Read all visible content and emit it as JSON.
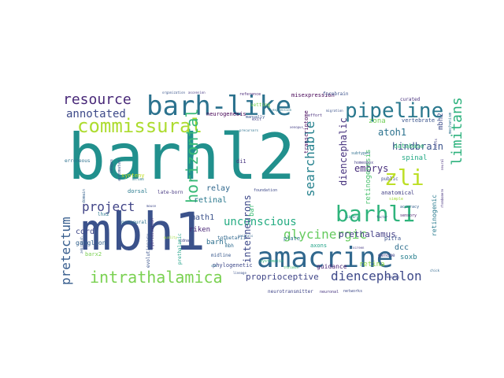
{
  "words": [
    {
      "text": "barhl2",
      "color": "#21908d"
    },
    {
      "text": "mbh1",
      "color": "#3b528b"
    },
    {
      "text": "amacrine",
      "color": "#31688e"
    },
    {
      "text": "barh-like",
      "color": "#2c728e"
    },
    {
      "text": "barhl1",
      "color": "#2fb47c"
    },
    {
      "text": "pipeline",
      "color": "#2a788e"
    },
    {
      "text": "zli",
      "color": "#bddf26"
    },
    {
      "text": "commissural",
      "color": "#addc30"
    },
    {
      "text": "intrathalamica",
      "color": "#7ad151"
    },
    {
      "text": "diencephalon",
      "color": "#3e4989"
    },
    {
      "text": "glycinergic",
      "color": "#65cb5e"
    },
    {
      "text": "resource",
      "color": "#482878"
    },
    {
      "text": "horizontal",
      "color": "#38b977"
    },
    {
      "text": "limitans",
      "color": "#2db27d"
    },
    {
      "text": "pretectum",
      "color": "#365c8d"
    },
    {
      "text": "annotated",
      "color": "#3e4a89"
    },
    {
      "text": "project",
      "color": "#414487"
    },
    {
      "text": "searchable",
      "color": "#26828e"
    },
    {
      "text": "unconscious",
      "color": "#25ac82"
    },
    {
      "text": "diencephalic",
      "color": "#46327e"
    },
    {
      "text": "embrys",
      "color": "#472d7b"
    },
    {
      "text": "atoh1",
      "color": "#2c728e"
    },
    {
      "text": "hindbrain",
      "color": "#3b528b"
    },
    {
      "text": "interneurons",
      "color": "#3e4989"
    },
    {
      "text": "proprioceptive",
      "color": "#404688"
    },
    {
      "text": "prethalamus",
      "color": "#433e85"
    },
    {
      "text": "relay",
      "color": "#31688e"
    },
    {
      "text": "retinal",
      "color": "#2a788e"
    },
    {
      "text": "math1",
      "color": "#3b528b"
    },
    {
      "text": "riken",
      "color": "#482475"
    },
    {
      "text": "cord",
      "color": "#3f4889"
    },
    {
      "text": "dcc",
      "color": "#2e6e8e"
    },
    {
      "text": "soxb",
      "color": "#277f8e"
    },
    {
      "text": "spinal",
      "color": "#22a884"
    },
    {
      "text": "retinogenesis",
      "color": "#4ac16d"
    },
    {
      "text": "mbh2",
      "color": "#3e4c8a"
    },
    {
      "text": "zona",
      "color": "#70cf57"
    },
    {
      "text": "retina",
      "color": "#8bd646"
    },
    {
      "text": "barhl",
      "color": "#2d708e"
    },
    {
      "text": "guidance",
      "color": "#482173"
    },
    {
      "text": "database",
      "color": "#35b779"
    },
    {
      "text": "vertebrate",
      "color": "#3a548c"
    },
    {
      "text": "synteny",
      "color": "#c2df23"
    },
    {
      "text": "neurogenesis",
      "color": "#440154"
    },
    {
      "text": "retinogenic",
      "color": "#297b8e"
    },
    {
      "text": "transcriptome",
      "color": "#46075a"
    },
    {
      "text": "bar",
      "color": "#3dbc74"
    },
    {
      "text": "di1",
      "color": "#46337f"
    },
    {
      "text": "ganglion",
      "color": "#34618d"
    },
    {
      "text": "plate",
      "color": "#2c728e"
    },
    {
      "text": "axons",
      "color": "#1fa287"
    },
    {
      "text": "anatomical",
      "color": "#424086"
    },
    {
      "text": "dorsal",
      "color": "#297a8e"
    },
    {
      "text": "late-born",
      "color": "#453781"
    },
    {
      "text": "phylogenetic",
      "color": "#3e4989"
    },
    {
      "text": "midline",
      "color": "#38588c"
    },
    {
      "text": "misexpression",
      "color": "#440154"
    },
    {
      "text": "forebrain",
      "color": "#3b518b"
    },
    {
      "text": "curated",
      "color": "#472f7d"
    },
    {
      "text": "mbh",
      "color": "#2f6c8e"
    },
    {
      "text": "reference",
      "color": "#482677"
    },
    {
      "text": "evolutionary",
      "color": "#3a538b"
    },
    {
      "text": "pitfa",
      "color": "#3b528b"
    },
    {
      "text": "lhx2",
      "color": "#2a788e"
    },
    {
      "text": "barx2",
      "color": "#7ad151"
    },
    {
      "text": "neurotransmitter",
      "color": "#404688"
    },
    {
      "text": "neuronal",
      "color": "#46337f"
    },
    {
      "text": "networks",
      "color": "#3e4989"
    },
    {
      "text": "genome",
      "color": "#414487"
    },
    {
      "text": "tgfbetarii",
      "color": "#31688e"
    },
    {
      "text": "proneural",
      "color": "#2c728e"
    },
    {
      "text": "public",
      "color": "#3e4989"
    },
    {
      "text": "simple",
      "color": "#a0da39"
    },
    {
      "text": "subtypes",
      "color": "#2e6e8e"
    },
    {
      "text": "homeobox",
      "color": "#433e85"
    },
    {
      "text": "manually",
      "color": "#3a548c"
    },
    {
      "text": "erroneous",
      "color": "#2d718e"
    },
    {
      "text": "prethalamic",
      "color": "#1fa187"
    },
    {
      "text": "systematic",
      "color": "#2db27d"
    },
    {
      "text": "sensory",
      "color": "#48186a"
    },
    {
      "text": "accuracy",
      "color": "#355f8d"
    },
    {
      "text": "foundation",
      "color": "#3e4989"
    },
    {
      "text": "setting",
      "color": "#7ad151"
    },
    {
      "text": "exit",
      "color": "#433e85"
    },
    {
      "text": "effort",
      "color": "#472c7a"
    },
    {
      "text": "organization",
      "color": "#3a548c"
    },
    {
      "text": "ascension",
      "color": "#453781"
    },
    {
      "text": "mechanism",
      "color": "#2c728e"
    },
    {
      "text": "mapping",
      "color": "#3e4989"
    },
    {
      "text": "domain",
      "color": "#34618d"
    },
    {
      "text": "images",
      "color": "#3b528b"
    },
    {
      "text": "automated",
      "color": "#38588c"
    },
    {
      "text": "atlas",
      "color": "#2a788e"
    },
    {
      "text": "hybridization",
      "color": "#46337f"
    },
    {
      "text": "cdnas",
      "color": "#3e4989"
    },
    {
      "text": "shh",
      "color": "#2d708e"
    },
    {
      "text": "quality",
      "color": "#9fda3a"
    },
    {
      "text": "genitals",
      "color": "#32658e"
    },
    {
      "text": "screen",
      "color": "#453781"
    },
    {
      "text": "thalamic",
      "color": "#44bf70"
    },
    {
      "text": "library",
      "color": "#2a788e"
    },
    {
      "text": "lineage",
      "color": "#3b528b"
    },
    {
      "text": "neural",
      "color": "#472d7b"
    },
    {
      "text": "zebrafish",
      "color": "#38588c"
    },
    {
      "text": "mouse",
      "color": "#3e4989"
    },
    {
      "text": "chick",
      "color": "#31688e"
    },
    {
      "text": "xenopus",
      "color": "#433e85"
    },
    {
      "text": "rhombomere",
      "color": "#46337f"
    },
    {
      "text": "precursors",
      "color": "#2c728e"
    },
    {
      "text": "migration",
      "color": "#3b528b"
    },
    {
      "text": "expression",
      "color": "#2a788e"
    },
    {
      "text": "cells",
      "color": "#433e85"
    },
    {
      "text": "factor",
      "color": "#3e4989"
    }
  ]
}
